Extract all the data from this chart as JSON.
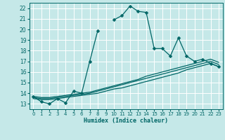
{
  "title": "",
  "xlabel": "Humidex (Indice chaleur)",
  "xlim": [
    -0.5,
    23.5
  ],
  "ylim": [
    12.5,
    22.5
  ],
  "xticks": [
    0,
    1,
    2,
    3,
    4,
    5,
    6,
    7,
    8,
    9,
    10,
    11,
    12,
    13,
    14,
    15,
    16,
    17,
    18,
    19,
    20,
    21,
    22,
    23
  ],
  "yticks": [
    13,
    14,
    15,
    16,
    17,
    18,
    19,
    20,
    21,
    22
  ],
  "bg_color": "#c5e8e8",
  "grid_color": "#ffffff",
  "line_color": "#006666",
  "series": [
    {
      "x": [
        0,
        1,
        2,
        3,
        4,
        5,
        6,
        7,
        8,
        9,
        10,
        11,
        12,
        13,
        14,
        15,
        16,
        17,
        18,
        19,
        20,
        21,
        22,
        23
      ],
      "y": [
        13.7,
        13.2,
        13.0,
        13.5,
        13.1,
        14.2,
        14.0,
        17.0,
        19.9,
        null,
        20.9,
        21.3,
        22.2,
        21.7,
        21.6,
        18.2,
        18.2,
        17.5,
        19.2,
        17.5,
        17.0,
        17.2,
        16.8,
        16.5
      ],
      "marker": "D",
      "markersize": 2.5,
      "linewidth": 0.9
    },
    {
      "x": [
        0,
        1,
        2,
        3,
        4,
        5,
        6,
        7,
        8,
        9,
        10,
        11,
        12,
        13,
        14,
        15,
        16,
        17,
        18,
        19,
        20,
        21,
        22,
        23
      ],
      "y": [
        13.5,
        13.4,
        13.4,
        13.5,
        13.6,
        13.7,
        13.8,
        13.9,
        14.0,
        14.2,
        14.4,
        14.5,
        14.7,
        14.9,
        15.1,
        15.3,
        15.5,
        15.7,
        15.9,
        16.2,
        16.4,
        16.6,
        16.8,
        16.5
      ],
      "marker": null,
      "markersize": 0,
      "linewidth": 0.9
    },
    {
      "x": [
        0,
        1,
        2,
        3,
        4,
        5,
        6,
        7,
        8,
        9,
        10,
        11,
        12,
        13,
        14,
        15,
        16,
        17,
        18,
        19,
        20,
        21,
        22,
        23
      ],
      "y": [
        13.6,
        13.5,
        13.5,
        13.6,
        13.7,
        13.8,
        13.9,
        14.0,
        14.2,
        14.4,
        14.6,
        14.8,
        15.0,
        15.2,
        15.4,
        15.6,
        15.8,
        16.0,
        16.2,
        16.4,
        16.6,
        16.8,
        17.0,
        16.7
      ],
      "marker": null,
      "markersize": 0,
      "linewidth": 0.9
    },
    {
      "x": [
        0,
        1,
        2,
        3,
        4,
        5,
        6,
        7,
        8,
        9,
        10,
        11,
        12,
        13,
        14,
        15,
        16,
        17,
        18,
        19,
        20,
        21,
        22,
        23
      ],
      "y": [
        13.7,
        13.6,
        13.6,
        13.7,
        13.8,
        13.9,
        14.0,
        14.1,
        14.3,
        14.5,
        14.7,
        14.9,
        15.1,
        15.3,
        15.6,
        15.8,
        16.0,
        16.2,
        16.4,
        16.6,
        16.8,
        17.0,
        17.2,
        16.9
      ],
      "marker": null,
      "markersize": 0,
      "linewidth": 0.9
    }
  ]
}
